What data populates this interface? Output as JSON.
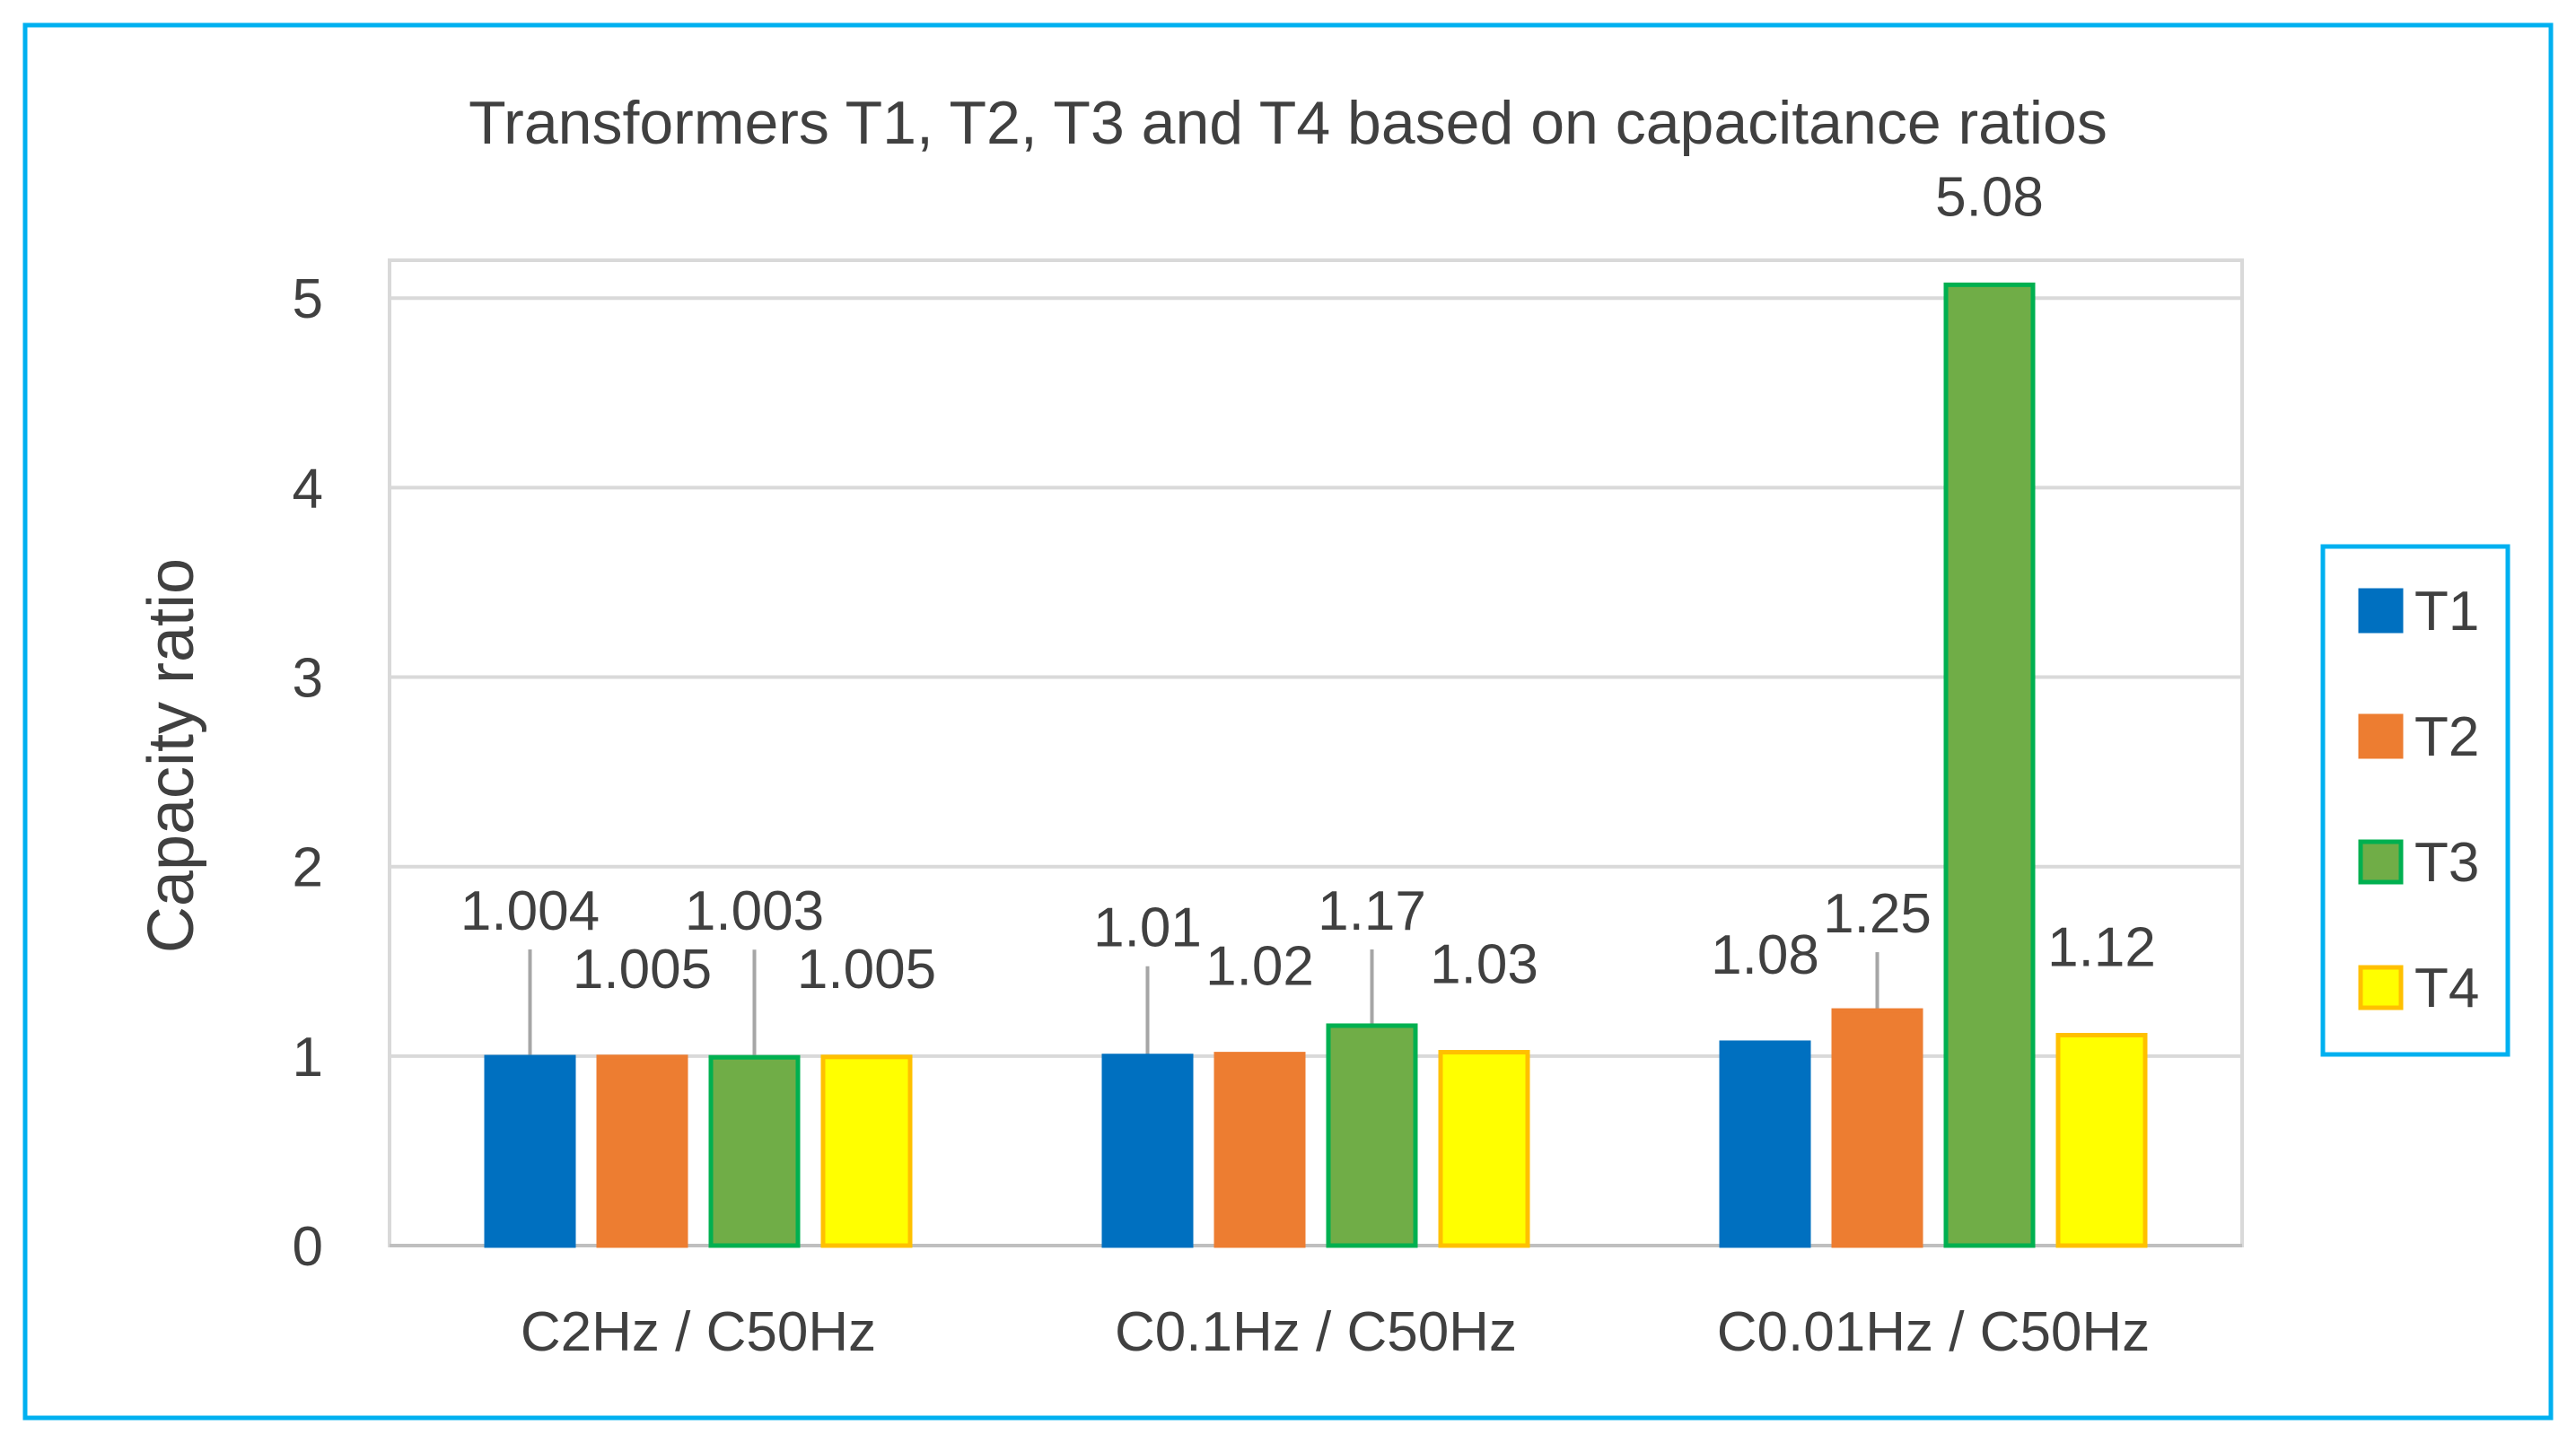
{
  "chart_data": {
    "type": "bar",
    "title": "Transformers T1, T2, T3 and T4 based on capacitance ratios",
    "xlabel": "",
    "ylabel": "Capacity ratio",
    "ylim": [
      0,
      5.2
    ],
    "yticks": [
      0,
      1,
      2,
      3,
      4,
      5
    ],
    "grid": true,
    "legend_position": "right",
    "categories": [
      "C2Hz / C50Hz",
      "C0.1Hz / C50Hz",
      "C0.01Hz / C50Hz"
    ],
    "series": [
      {
        "name": "T1",
        "color": "#0070C0",
        "border": "#0070C0",
        "values": [
          1.004,
          1.01,
          1.08
        ],
        "labels": [
          "1.004",
          "1.01",
          "1.08"
        ]
      },
      {
        "name": "T2",
        "color": "#ED7D31",
        "border": "#ED7D31",
        "values": [
          1.005,
          1.02,
          1.25
        ],
        "labels": [
          "1.005",
          "1.02",
          "1.25"
        ]
      },
      {
        "name": "T3",
        "color": "#70AD47",
        "border": "#00B050",
        "values": [
          1.003,
          1.17,
          5.08
        ],
        "labels": [
          "1.003",
          "1.17",
          "5.08"
        ]
      },
      {
        "name": "T4",
        "color": "#FFFF00",
        "border": "#FFC000",
        "values": [
          1.005,
          1.03,
          1.12
        ],
        "labels": [
          "1.005",
          "1.03",
          "1.12"
        ]
      }
    ]
  }
}
